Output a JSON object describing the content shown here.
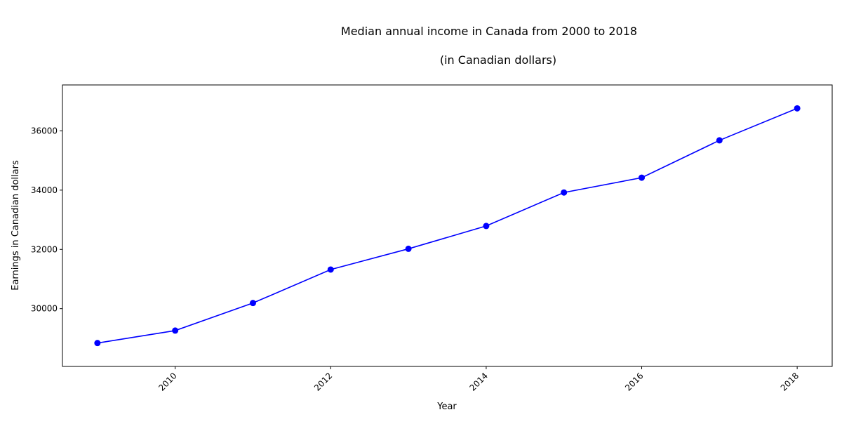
{
  "chart_data": {
    "type": "line",
    "title": "Median annual income in Canada from 2000 to 2018",
    "subtitle": "(in Canadian dollars)",
    "xlabel": "Year",
    "ylabel": "Earnings in Canadian dollars",
    "x": [
      2009,
      2010,
      2011,
      2012,
      2013,
      2014,
      2015,
      2016,
      2017,
      2018
    ],
    "series": [
      {
        "values": [
          28840,
          29260,
          30190,
          31320,
          32020,
          32790,
          33920,
          34420,
          35680,
          36760
        ],
        "color": "#0000ff",
        "marker": "circle"
      }
    ],
    "xlim": [
      2008.55,
      2018.45
    ],
    "ylim": [
      28050,
      37550
    ],
    "xticks": [
      2010,
      2012,
      2014,
      2016,
      2018
    ],
    "yticks": [
      30000,
      32000,
      34000,
      36000
    ],
    "grid": false,
    "legend": "none"
  }
}
